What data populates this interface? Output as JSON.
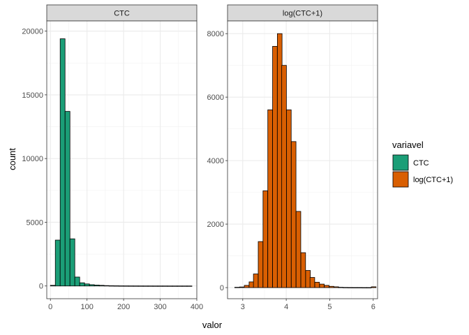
{
  "chart_data": {
    "type": "bar",
    "xlabel": "valor",
    "ylabel": "count",
    "grid": true,
    "legend": {
      "title": "variavel",
      "placement": "right",
      "entries": [
        {
          "label": "CTC",
          "color": "#1b9e77"
        },
        {
          "label": "log(CTC+1)",
          "color": "#d95f02"
        }
      ]
    },
    "panels": [
      {
        "strip": "CTC",
        "color": "#1b9e77",
        "xlim": [
          -10,
          400
        ],
        "ylim": [
          -1000,
          20800
        ],
        "xticks": [
          0,
          100,
          200,
          300,
          400
        ],
        "yticks": [
          0,
          5000,
          10000,
          15000,
          20000
        ],
        "bin_width": 13.3,
        "bins": [
          {
            "x": 6.7,
            "count": 50
          },
          {
            "x": 20.0,
            "count": 3600
          },
          {
            "x": 33.3,
            "count": 19400
          },
          {
            "x": 46.7,
            "count": 13700
          },
          {
            "x": 60.0,
            "count": 3700
          },
          {
            "x": 73.3,
            "count": 700
          },
          {
            "x": 86.7,
            "count": 250
          },
          {
            "x": 100.0,
            "count": 160
          },
          {
            "x": 113.3,
            "count": 100
          },
          {
            "x": 126.7,
            "count": 70
          },
          {
            "x": 140.0,
            "count": 50
          },
          {
            "x": 153.3,
            "count": 30
          },
          {
            "x": 166.7,
            "count": 20
          },
          {
            "x": 180.0,
            "count": 15
          },
          {
            "x": 193.3,
            "count": 10
          },
          {
            "x": 206.7,
            "count": 8
          },
          {
            "x": 220.0,
            "count": 6
          },
          {
            "x": 233.3,
            "count": 5
          },
          {
            "x": 246.7,
            "count": 4
          },
          {
            "x": 260.0,
            "count": 3
          },
          {
            "x": 273.3,
            "count": 3
          },
          {
            "x": 286.7,
            "count": 2
          },
          {
            "x": 300.0,
            "count": 2
          },
          {
            "x": 313.3,
            "count": 2
          },
          {
            "x": 326.7,
            "count": 1
          },
          {
            "x": 340.0,
            "count": 1
          },
          {
            "x": 353.3,
            "count": 1
          },
          {
            "x": 366.7,
            "count": 1
          },
          {
            "x": 380.0,
            "count": 1
          }
        ]
      },
      {
        "strip": "log(CTC+1)",
        "color": "#d95f02",
        "xlim": [
          2.65,
          6.1
        ],
        "ylim": [
          -350,
          8400
        ],
        "xticks": [
          3,
          4,
          5,
          6
        ],
        "yticks": [
          0,
          2000,
          4000,
          6000,
          8000
        ],
        "bin_width": 0.108,
        "bins": [
          {
            "x": 2.87,
            "count": 10
          },
          {
            "x": 2.98,
            "count": 20
          },
          {
            "x": 3.09,
            "count": 70
          },
          {
            "x": 3.2,
            "count": 180
          },
          {
            "x": 3.3,
            "count": 430
          },
          {
            "x": 3.41,
            "count": 1450
          },
          {
            "x": 3.52,
            "count": 3050
          },
          {
            "x": 3.63,
            "count": 5600
          },
          {
            "x": 3.74,
            "count": 7600
          },
          {
            "x": 3.85,
            "count": 8000
          },
          {
            "x": 3.95,
            "count": 7000
          },
          {
            "x": 4.06,
            "count": 5600
          },
          {
            "x": 4.17,
            "count": 4600
          },
          {
            "x": 4.28,
            "count": 2400
          },
          {
            "x": 4.39,
            "count": 1100
          },
          {
            "x": 4.5,
            "count": 540
          },
          {
            "x": 4.6,
            "count": 320
          },
          {
            "x": 4.71,
            "count": 170
          },
          {
            "x": 4.82,
            "count": 110
          },
          {
            "x": 4.93,
            "count": 70
          },
          {
            "x": 5.04,
            "count": 40
          },
          {
            "x": 5.15,
            "count": 25
          },
          {
            "x": 5.25,
            "count": 10
          },
          {
            "x": 5.36,
            "count": 5
          },
          {
            "x": 5.47,
            "count": 3
          },
          {
            "x": 5.58,
            "count": 2
          },
          {
            "x": 5.69,
            "count": 2
          },
          {
            "x": 5.8,
            "count": 1
          },
          {
            "x": 5.9,
            "count": 1
          },
          {
            "x": 6.01,
            "count": 25
          }
        ]
      }
    ]
  }
}
